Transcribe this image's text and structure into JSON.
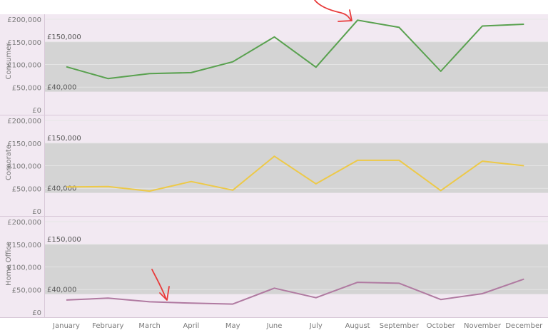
{
  "chart_data": {
    "type": "line",
    "categories": [
      "January",
      "February",
      "March",
      "April",
      "May",
      "June",
      "July",
      "August",
      "September",
      "October",
      "November",
      "December"
    ],
    "ylim": [
      0,
      200000
    ],
    "y_ticks": [
      {
        "value": 0,
        "label": "£0"
      },
      {
        "value": 50000,
        "label": "£50,000"
      },
      {
        "value": 100000,
        "label": "£100,000"
      },
      {
        "value": 150000,
        "label": "£150,000"
      },
      {
        "value": 200000,
        "label": "£200,000"
      }
    ],
    "reference_band": {
      "low": 40000,
      "high": 150000,
      "low_label": "£40,000",
      "high_label": "£150,000"
    },
    "grid": true,
    "panels": [
      {
        "segment": "Consumer",
        "color": "#59a14f",
        "values": [
          95000,
          69000,
          80000,
          82000,
          106000,
          161000,
          94000,
          198000,
          182000,
          85000,
          185000,
          189000
        ]
      },
      {
        "segment": "Corporate",
        "color": "#edc948",
        "values": [
          53000,
          54000,
          44000,
          65000,
          46000,
          121000,
          60000,
          112000,
          112000,
          45000,
          110000,
          100000
        ]
      },
      {
        "segment": "Home Office",
        "color": "#b07aa1",
        "values": [
          27000,
          31000,
          23000,
          20000,
          18000,
          53000,
          32000,
          66000,
          64000,
          28000,
          41000,
          73000
        ]
      }
    ],
    "colors": {
      "background": "#f2e9f2",
      "band": "#d4d4d4",
      "gridline": "#e6e6e6",
      "annotation": "#e83a3a"
    }
  }
}
